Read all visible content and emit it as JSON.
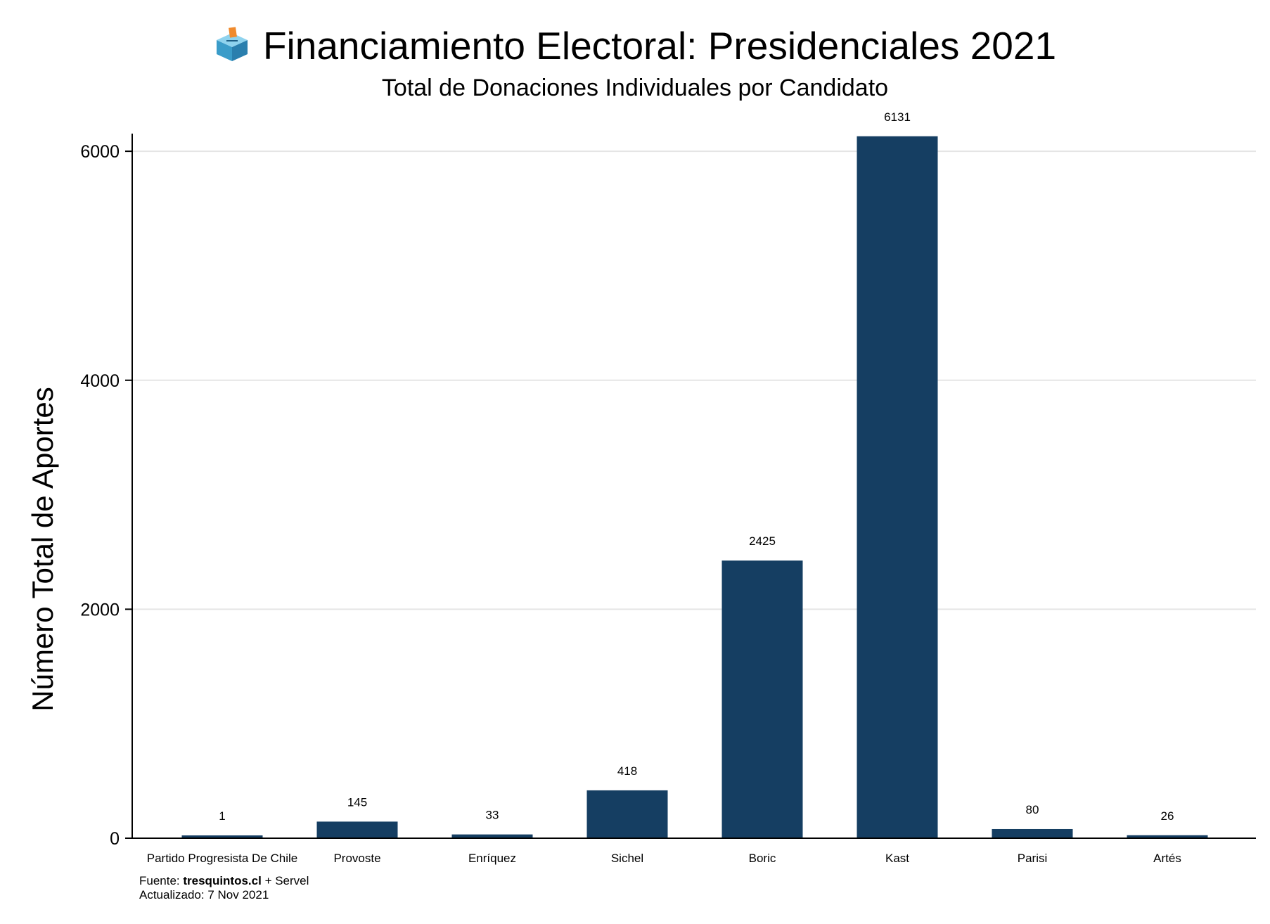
{
  "header": {
    "title_icon": "ballot-box-icon",
    "title": "Financiamiento Electoral: Presidenciales 2021",
    "subtitle": "Total de Donaciones Individuales por Candidato"
  },
  "chart_data": {
    "type": "bar",
    "title": "Financiamiento Electoral: Presidenciales 2021",
    "subtitle": "Total de Donaciones Individuales por Candidato",
    "xlabel": "",
    "ylabel": "Número Total de Aportes",
    "categories": [
      "Partido Progresista De Chile",
      "Provoste",
      "Enríquez",
      "Sichel",
      "Boric",
      "Kast",
      "Parisi",
      "Artés"
    ],
    "values": [
      1,
      145,
      33,
      418,
      2425,
      6131,
      80,
      26
    ],
    "data_labels": [
      "1",
      "145",
      "33",
      "418",
      "2425",
      "6131",
      "80",
      "26"
    ],
    "ylim": [
      0,
      6400
    ],
    "yticks": [
      0,
      2000,
      4000,
      6000
    ],
    "ytick_labels": [
      "0",
      "2000",
      "4000",
      "6000"
    ],
    "grid": "horizontal",
    "legend": "none",
    "bar_color": "#153e62",
    "grid_color": "#e5e5e5"
  },
  "footer": {
    "source_prefix": "Fuente: ",
    "source_site": "tresquintos.cl",
    "source_suffix": " + Servel",
    "updated": "Actualizado: 7 Nov 2021"
  }
}
